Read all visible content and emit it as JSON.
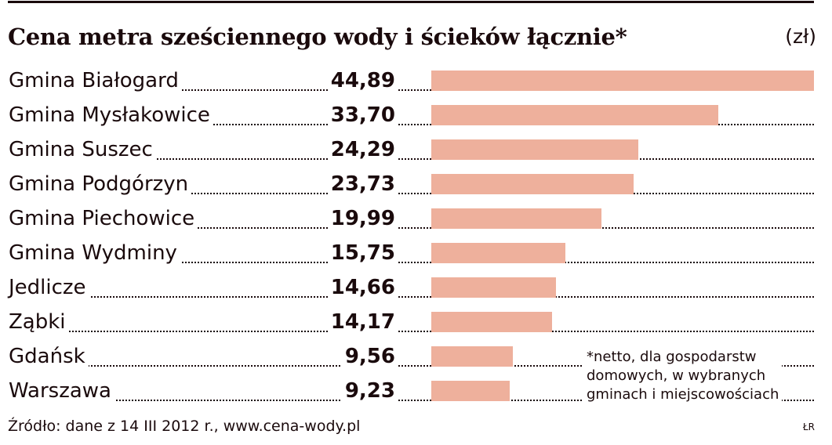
{
  "header": {
    "title": "Cena metra sześciennego wody i ścieków łącznie*",
    "unit": "(zł)"
  },
  "colors": {
    "bar": "#eeb09c",
    "text": "#1a0a0c"
  },
  "rows": [
    {
      "label": "Gmina Białogard",
      "value": "44,89"
    },
    {
      "label": "Gmina Mysłakowice",
      "value": "33,70"
    },
    {
      "label": "Gmina Suszec",
      "value": "24,29"
    },
    {
      "label": "Gmina Podgórzyn",
      "value": "23,73"
    },
    {
      "label": "Gmina Piechowice",
      "value": "19,99"
    },
    {
      "label": "Gmina Wydminy",
      "value": "15,75"
    },
    {
      "label": "Jedlicze",
      "value": "14,66"
    },
    {
      "label": "Ząbki",
      "value": "14,17"
    },
    {
      "label": "Gdańsk",
      "value": "9,56"
    },
    {
      "label": "Warszawa",
      "value": "9,23"
    }
  ],
  "footnote": {
    "line1": "*netto, dla gospodarstw",
    "line2": "domowych, w wybranych",
    "line3": "gminach i miejscowościach"
  },
  "source": "Źródło: dane z 14 III 2012 r., www.cena-wody.pl",
  "credit": "ŁR",
  "chart_data": {
    "type": "bar",
    "orientation": "horizontal",
    "title": "Cena metra sześciennego wody i ścieków łącznie*",
    "unit": "zł",
    "categories": [
      "Gmina Białogard",
      "Gmina Mysłakowice",
      "Gmina Suszec",
      "Gmina Podgórzyn",
      "Gmina Piechowice",
      "Gmina Wydminy",
      "Jedlicze",
      "Ząbki",
      "Gdańsk",
      "Warszawa"
    ],
    "values": [
      44.89,
      33.7,
      24.29,
      23.73,
      19.99,
      15.75,
      14.66,
      14.17,
      9.56,
      9.23
    ],
    "xlabel": "",
    "ylabel": "",
    "grid": false,
    "legend": null,
    "annotations": [
      "*netto, dla gospodarstw domowych, w wybranych gminach i miejscowościach"
    ],
    "source": "Źródło: dane z 14 III 2012 r., www.cena-wody.pl"
  }
}
